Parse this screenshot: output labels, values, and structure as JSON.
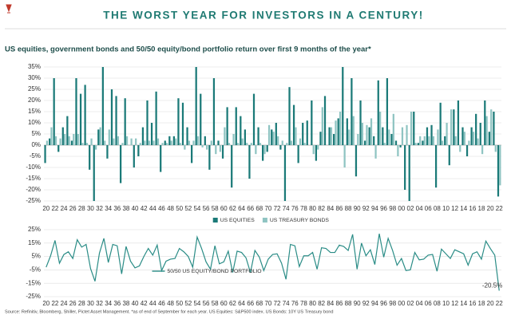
{
  "heading": "THE WORST YEAR FOR INVESTORS IN A CENTURY!",
  "source": "Source: Refinitiv, Bloomberg, Shiller, Pictet Asset Management. *as of end of September for each year. US Equities: S&P500 index. US Bonds: 10Y US Treasury bond",
  "chart_data": [
    {
      "type": "bar",
      "title": "US equities, government bonds and 50/50 equity/bond portfolio return over first 9 months of the year*",
      "categories": [
        "20",
        null,
        "22",
        null,
        "24",
        null,
        "26",
        null,
        "28",
        null,
        "30",
        null,
        "32",
        null,
        "34",
        null,
        "36",
        null,
        "38",
        null,
        "40",
        null,
        "42",
        null,
        "44",
        null,
        "46",
        null,
        "48",
        null,
        "50",
        null,
        "52",
        null,
        "54",
        null,
        "56",
        null,
        "58",
        null,
        "60",
        null,
        "62",
        null,
        "64",
        null,
        "66",
        null,
        "68",
        null,
        "70",
        null,
        "72",
        null,
        "74",
        null,
        "76",
        null,
        "78",
        null,
        "80",
        null,
        "82",
        null,
        "84",
        null,
        "86",
        null,
        "88",
        null,
        "90",
        null,
        "92",
        null,
        "94",
        null,
        "96",
        null,
        "98",
        null,
        "00",
        null,
        "02",
        null,
        "04",
        null,
        "06",
        null,
        "08",
        null,
        "10",
        null,
        "12",
        null,
        "14",
        null,
        "16",
        null,
        "18",
        null,
        "20",
        null,
        "22"
      ],
      "series": [
        {
          "name": "US EQUITIES",
          "color": "#1b7a78",
          "values": [
            -8,
            3,
            30,
            -3,
            8,
            13,
            2,
            30,
            23,
            27,
            -11,
            -25,
            7,
            35,
            -6,
            25,
            22,
            -17,
            21,
            0,
            -10,
            -5,
            8,
            20,
            10,
            24,
            -12,
            2,
            4,
            4,
            21,
            19,
            8,
            -8,
            35,
            23,
            4,
            -11,
            30,
            2,
            -6,
            17,
            -19,
            17,
            13,
            7,
            -15,
            23,
            8,
            -7,
            -3,
            7,
            10,
            -2,
            -25,
            26,
            18,
            -8,
            10,
            11,
            20,
            -7,
            6,
            22,
            8,
            5,
            12,
            35,
            12,
            30,
            -14,
            20,
            2,
            8,
            4,
            29,
            8,
            30,
            5,
            2,
            -1,
            -20,
            -25,
            15,
            1,
            2,
            8,
            9,
            -19,
            19,
            4,
            -9,
            16,
            20,
            8,
            -5,
            8,
            14,
            10,
            20,
            6,
            15,
            -23
          ]
        },
        {
          "name": "US TREASURY BONDS",
          "color": "#8fc4c2",
          "values": [
            2,
            8,
            4,
            3,
            5,
            4,
            5,
            5,
            1,
            1,
            3,
            -2,
            8,
            2,
            7,
            3,
            4,
            1,
            4,
            3,
            3,
            1,
            2,
            2,
            2,
            3,
            1,
            1,
            2,
            3,
            1,
            -2,
            2,
            2,
            4,
            -1,
            -2,
            2,
            -4,
            -3,
            8,
            1,
            5,
            1,
            3,
            1,
            1,
            -4,
            1,
            -4,
            9,
            6,
            4,
            2,
            1,
            2,
            8,
            3,
            1,
            0,
            -4,
            -2,
            17,
            0,
            8,
            11,
            15,
            -10,
            7,
            13,
            5,
            10,
            9,
            12,
            -6,
            15,
            1,
            7,
            14,
            -5,
            8,
            9,
            15,
            1,
            4,
            4,
            4,
            4,
            7,
            2,
            10,
            16,
            4,
            -3,
            6,
            2,
            6,
            3,
            -4,
            13,
            16,
            -3,
            -18
          ]
        }
      ],
      "ylim": [
        -25,
        35
      ],
      "yticks": [
        {
          "value": -25,
          "label": "-25%"
        },
        {
          "value": -20,
          "label": "-20%"
        },
        {
          "value": -15,
          "label": "-15%"
        },
        {
          "value": -10,
          "label": "-10%"
        },
        {
          "value": -5,
          "label": "-5%"
        },
        {
          "value": 0,
          "label": "0%"
        },
        {
          "value": 5,
          "label": "5%"
        },
        {
          "value": 10,
          "label": "10%"
        },
        {
          "value": 15,
          "label": "15%"
        },
        {
          "value": 20,
          "label": "20%"
        },
        {
          "value": 25,
          "label": "25%"
        },
        {
          "value": 30,
          "label": "30%"
        },
        {
          "value": 35,
          "label": "35%"
        }
      ],
      "grid": true,
      "legend": "bottom"
    },
    {
      "type": "line",
      "categories": [
        "20",
        null,
        "22",
        null,
        "24",
        null,
        "26",
        null,
        "28",
        null,
        "30",
        null,
        "32",
        null,
        "34",
        null,
        "36",
        null,
        "38",
        null,
        "40",
        null,
        "42",
        null,
        "44",
        null,
        "46",
        null,
        "48",
        null,
        "50",
        null,
        "52",
        null,
        "54",
        null,
        "56",
        null,
        "58",
        null,
        "60",
        null,
        "62",
        null,
        "64",
        null,
        "66",
        null,
        "68",
        null,
        "70",
        null,
        "72",
        null,
        "74",
        null,
        "76",
        null,
        "78",
        null,
        "80",
        null,
        "82",
        null,
        "84",
        null,
        "86",
        null,
        "88",
        null,
        "90",
        null,
        "92",
        null,
        "94",
        null,
        "96",
        null,
        "98",
        null,
        "00",
        null,
        "02",
        null,
        "04",
        null,
        "06",
        null,
        "08",
        null,
        "10",
        null,
        "12",
        null,
        "14",
        null,
        "16",
        null,
        "18",
        null,
        "20",
        null,
        "22"
      ],
      "series": [
        {
          "name": "50/50 US EQUITY/BOND PORTFOLIO",
          "color": "#2a8c86",
          "values": [
            -3,
            5.5,
            17,
            0,
            6.5,
            8.5,
            3.5,
            17.5,
            12,
            14,
            -4,
            -13.5,
            7.5,
            18.5,
            0.5,
            14,
            13,
            -8,
            12.5,
            1.5,
            -3.5,
            -2,
            5,
            11,
            6,
            13.5,
            -5.5,
            1.5,
            3,
            3.5,
            11,
            8.5,
            5,
            -3,
            19.5,
            11,
            1,
            -4.5,
            13,
            -0.5,
            1,
            9,
            -7,
            9,
            8,
            4,
            -7,
            9.5,
            4.5,
            -5.5,
            3,
            6.5,
            7,
            0,
            -12,
            14,
            13,
            -2.5,
            5.5,
            5.5,
            8,
            -4.5,
            11.5,
            11,
            8,
            8,
            13.5,
            12.5,
            9.5,
            21.5,
            -4.5,
            15,
            5.5,
            10,
            -1,
            22,
            4.5,
            18.5,
            9.5,
            -1.5,
            3.5,
            -5.5,
            -5,
            8,
            2.5,
            3,
            6,
            6.5,
            -6,
            10.5,
            7,
            3.5,
            10,
            8.5,
            7,
            -1.5,
            7,
            8.5,
            3,
            16.5,
            11,
            6,
            -20.5
          ],
          "value_labels": [
            null,
            null,
            null,
            null,
            null,
            null,
            null,
            null,
            null,
            null,
            null,
            null,
            null,
            null,
            null,
            null,
            null,
            null,
            null,
            null,
            null,
            null,
            null,
            null,
            null,
            null,
            null,
            null,
            null,
            null,
            null,
            null,
            null,
            null,
            null,
            null,
            null,
            null,
            null,
            null,
            null,
            null,
            null,
            null,
            null,
            null,
            null,
            null,
            null,
            null,
            null,
            null,
            null,
            null,
            null,
            null,
            null,
            null,
            null,
            null,
            null,
            null,
            null,
            null,
            null,
            null,
            null,
            null,
            null,
            null,
            null,
            null,
            null,
            null,
            null,
            null,
            null,
            null,
            null,
            null,
            null,
            null,
            null,
            null,
            null,
            null,
            null,
            null,
            null,
            null,
            null,
            null,
            null,
            null,
            null,
            null,
            null,
            null,
            null,
            null,
            null,
            null,
            "-20.5%"
          ]
        }
      ],
      "ylim": [
        -25,
        25
      ],
      "yticks": [
        {
          "value": -25,
          "label": "-25%"
        },
        {
          "value": -15,
          "label": "-15%"
        },
        {
          "value": -5,
          "label": "-5%"
        },
        {
          "value": 5,
          "label": "5%"
        },
        {
          "value": 15,
          "label": "15%"
        },
        {
          "value": 25,
          "label": "25%"
        }
      ],
      "grid": true,
      "legend": "bottom"
    }
  ]
}
